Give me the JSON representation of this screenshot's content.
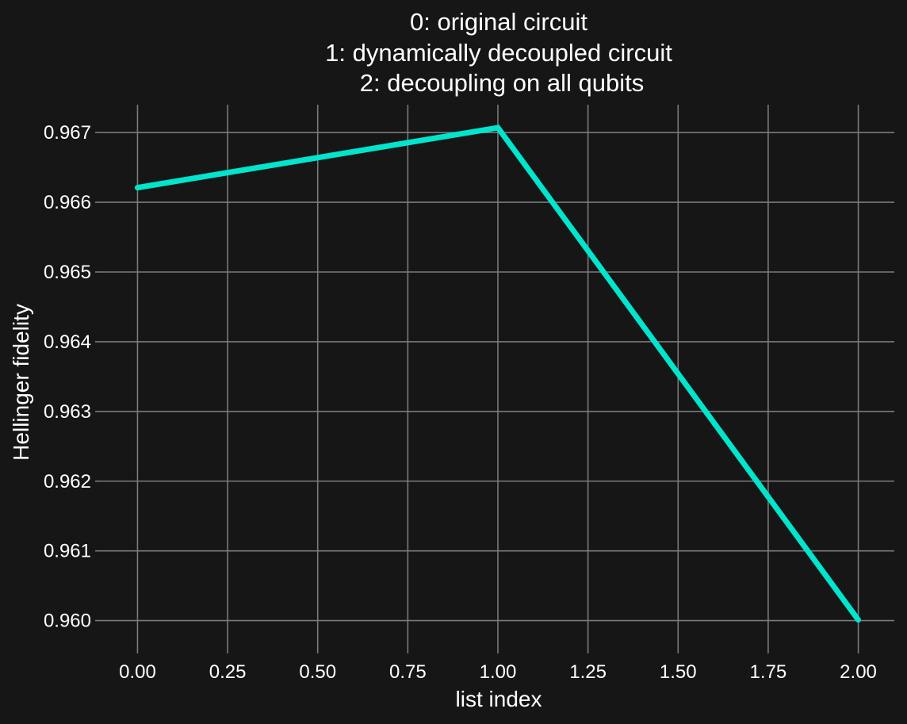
{
  "chart_data": {
    "type": "line",
    "title_lines": [
      "0: original circuit",
      "1: dynamically decoupled circuit",
      "2: decoupling on all qubits"
    ],
    "xlabel": "list index",
    "ylabel": "Hellinger fidelity",
    "x": [
      0,
      1,
      2
    ],
    "series": [
      {
        "values": [
          0.96621,
          0.96707,
          0.96001
        ],
        "color": "#00e5cc"
      }
    ],
    "xlim": [
      -0.1,
      2.1
    ],
    "ylim": [
      0.95962,
      0.9674
    ],
    "xticks": [
      0,
      0.25,
      0.5,
      0.75,
      1.0,
      1.25,
      1.5,
      1.75,
      2.0
    ],
    "xtick_labels": [
      "0.00",
      "0.25",
      "0.50",
      "0.75",
      "1.00",
      "1.25",
      "1.50",
      "1.75",
      "2.00"
    ],
    "yticks": [
      0.96,
      0.961,
      0.962,
      0.963,
      0.964,
      0.965,
      0.966,
      0.967
    ],
    "ytick_labels": [
      "0.960",
      "0.961",
      "0.962",
      "0.963",
      "0.964",
      "0.965",
      "0.966",
      "0.967"
    ],
    "grid": true,
    "background_color": "#161616",
    "grid_color": "#7a7a7a",
    "text_color": "#ffffff"
  }
}
